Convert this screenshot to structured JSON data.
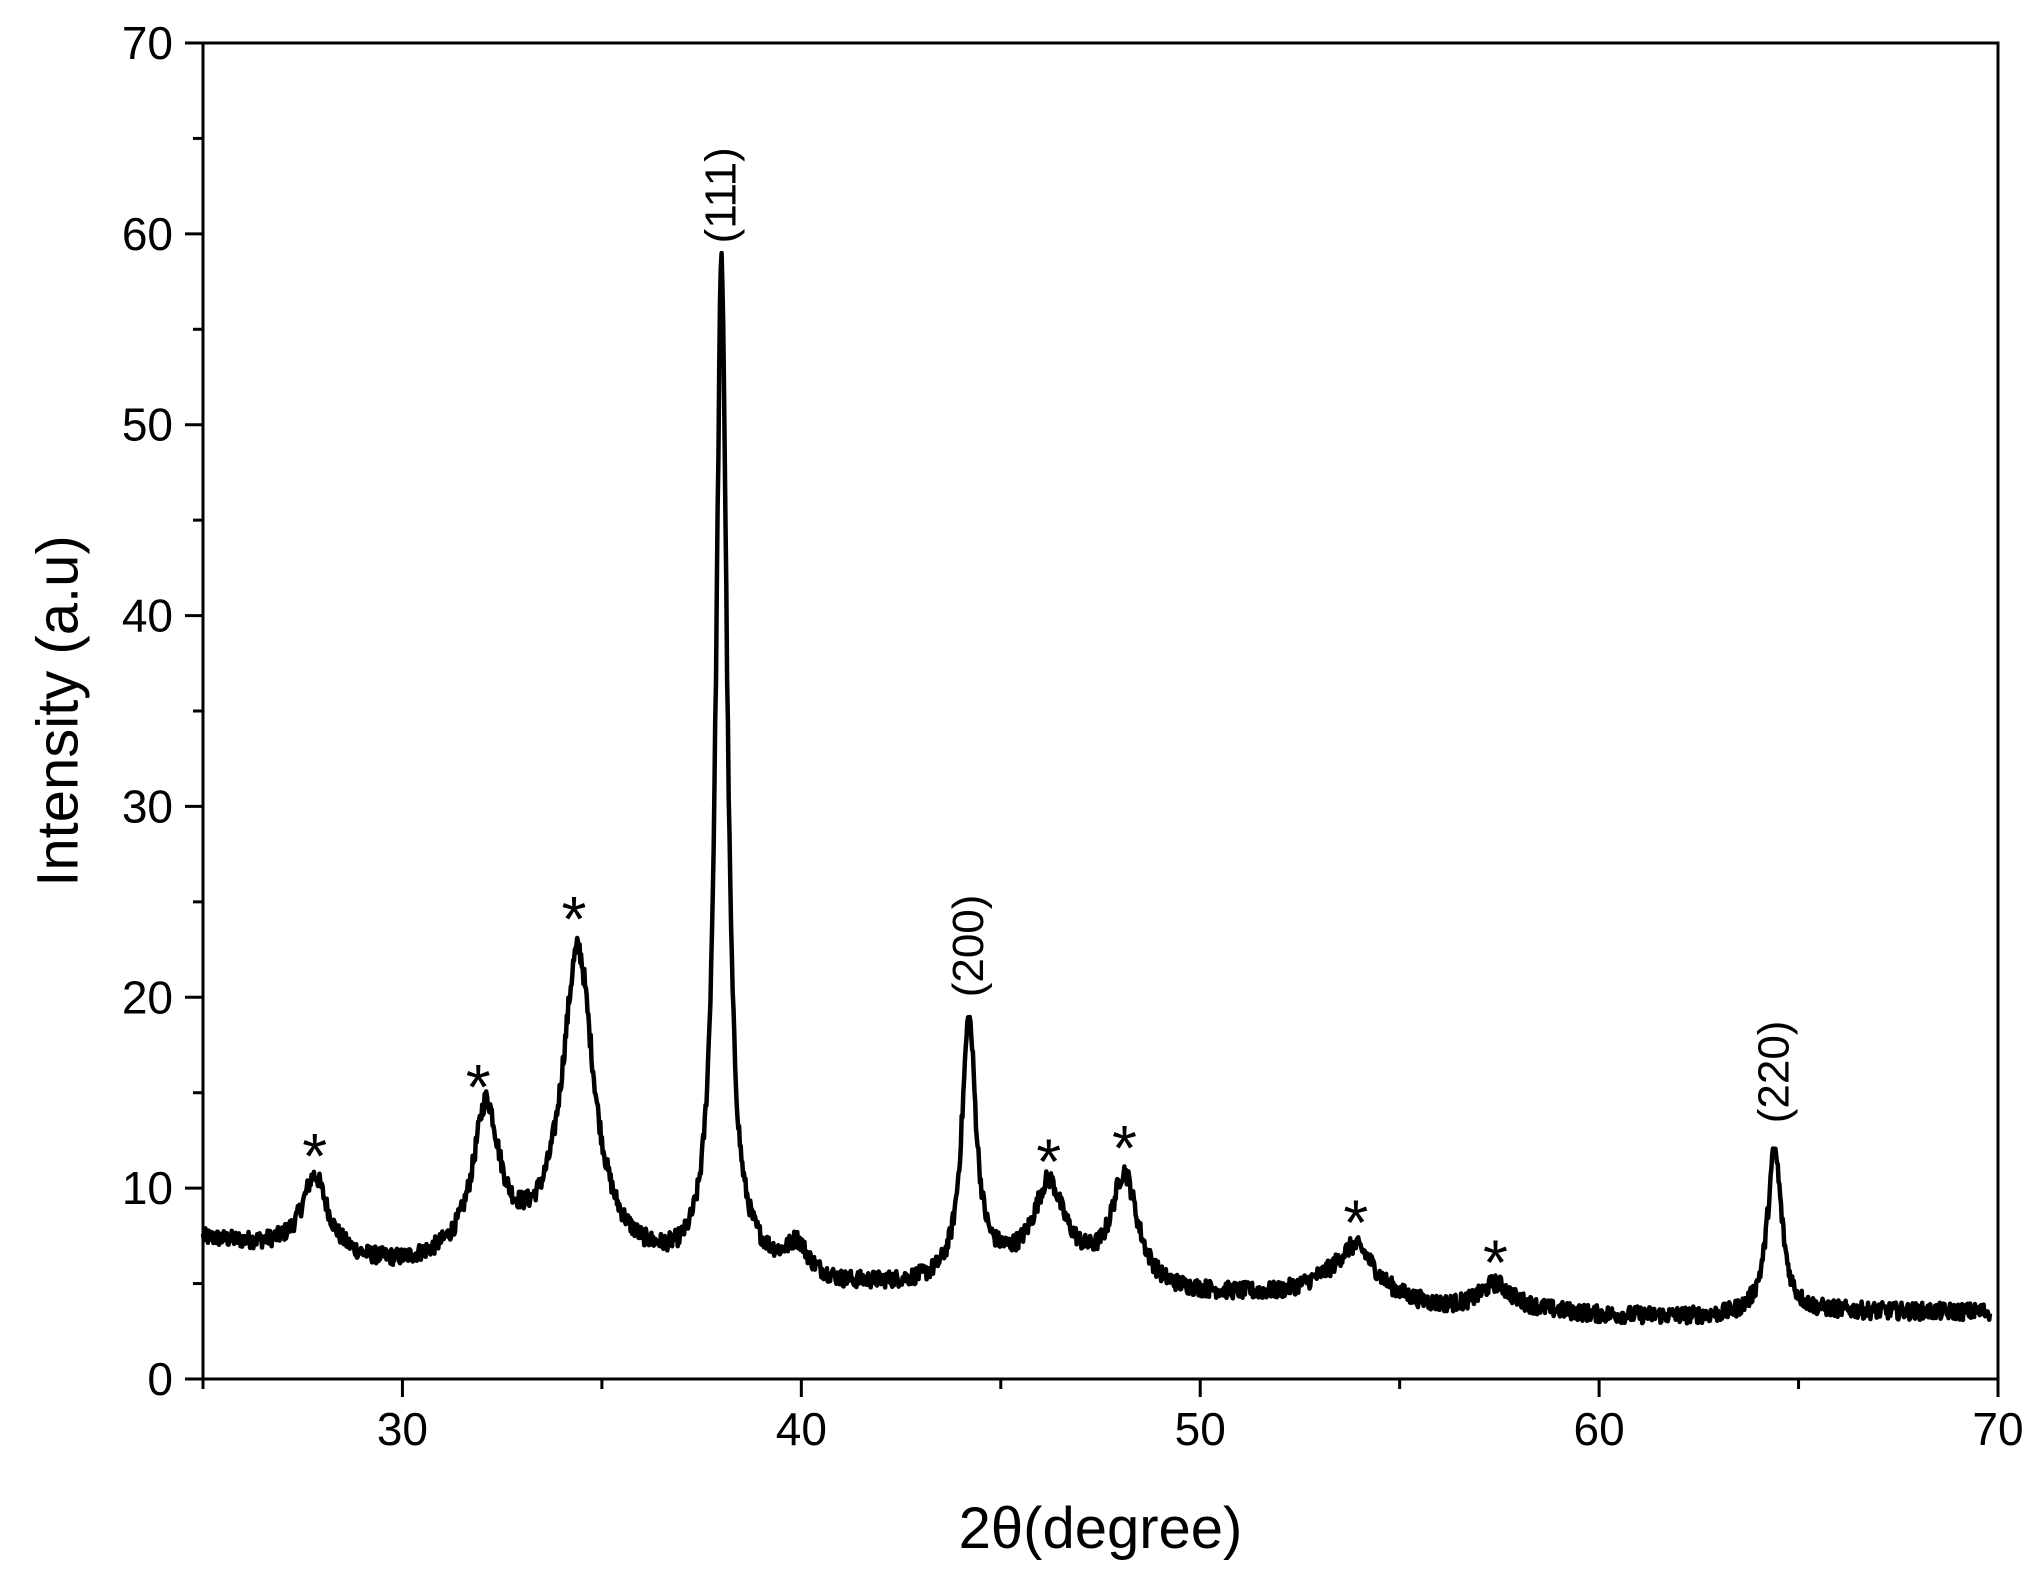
{
  "chart_data": {
    "type": "line",
    "title": "",
    "xlabel": "2θ(degree)",
    "ylabel": "Intensity (a.u)",
    "xlim": [
      25,
      70
    ],
    "ylim": [
      0,
      70
    ],
    "x_ticks": [
      30,
      40,
      50,
      60,
      70
    ],
    "y_ticks": [
      0,
      10,
      20,
      30,
      40,
      50,
      60,
      70
    ],
    "x_minor_step": 5,
    "y_minor_step": 5,
    "grid": false,
    "legend": "none",
    "line_color": "#000000",
    "baseline": [
      [
        25,
        7.3
      ],
      [
        28,
        6.5
      ],
      [
        29,
        6.0
      ],
      [
        30,
        5.8
      ],
      [
        33,
        6.3
      ],
      [
        37,
        5.5
      ],
      [
        38.6,
        5.8
      ],
      [
        41,
        4.8
      ],
      [
        44,
        4.8
      ],
      [
        45,
        5.5
      ],
      [
        46.8,
        5.5
      ],
      [
        47.5,
        5.0
      ],
      [
        49,
        4.4
      ],
      [
        52,
        4.3
      ],
      [
        53,
        4.6
      ],
      [
        55,
        3.9
      ],
      [
        56,
        3.6
      ],
      [
        58,
        3.6
      ],
      [
        60,
        3.3
      ],
      [
        63,
        3.2
      ],
      [
        66,
        3.5
      ],
      [
        70,
        3.5
      ]
    ],
    "peaks": [
      {
        "x": 27.8,
        "y": 10.5,
        "width": 0.38
      },
      {
        "x": 32.1,
        "y": 13.9,
        "width": 0.4
      },
      {
        "x": 34.4,
        "y": 22.2,
        "width": 0.48
      },
      {
        "x": 38.0,
        "y": 58.0,
        "width": 0.17
      },
      {
        "x": 39.9,
        "y": 6.7,
        "width": 0.3
      },
      {
        "x": 44.2,
        "y": 18.5,
        "width": 0.22
      },
      {
        "x": 46.2,
        "y": 10.0,
        "width": 0.45
      },
      {
        "x": 48.1,
        "y": 10.5,
        "width": 0.4
      },
      {
        "x": 53.9,
        "y": 6.9,
        "width": 0.6
      },
      {
        "x": 57.4,
        "y": 4.9,
        "width": 0.45
      },
      {
        "x": 64.4,
        "y": 11.9,
        "width": 0.22
      }
    ],
    "noise_amplitude": 0.45,
    "annotations": [
      {
        "text": "(111)",
        "x": 38.0,
        "y": 59.5,
        "rotate": true
      },
      {
        "text": "(200)",
        "x": 44.2,
        "y": 20.0,
        "rotate": true
      },
      {
        "text": "(220)",
        "x": 64.4,
        "y": 13.4,
        "rotate": true
      }
    ],
    "markers": [
      {
        "text": "*",
        "x": 27.8,
        "y": 11.8
      },
      {
        "text": "*",
        "x": 31.9,
        "y": 15.4
      },
      {
        "text": "*",
        "x": 34.3,
        "y": 24.2
      },
      {
        "text": "*",
        "x": 46.2,
        "y": 11.5
      },
      {
        "text": "*",
        "x": 48.1,
        "y": 12.2
      },
      {
        "text": "*",
        "x": 53.9,
        "y": 8.3
      },
      {
        "text": "*",
        "x": 57.4,
        "y": 6.2
      }
    ]
  }
}
